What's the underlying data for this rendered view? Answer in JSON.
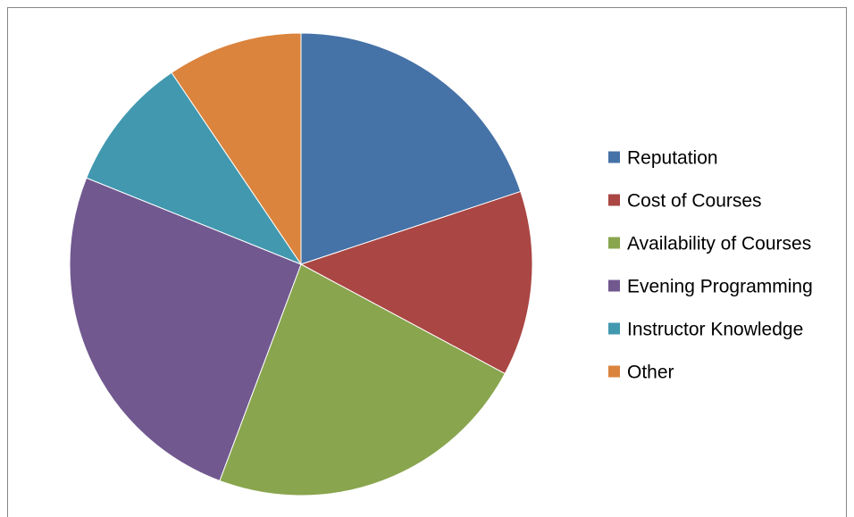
{
  "chart_data": {
    "type": "pie",
    "title": "",
    "categories": [
      "Reputation",
      "Cost of Courses",
      "Availability of Courses",
      "Evening Programming",
      "Instructor Knowledge",
      "Other"
    ],
    "values": [
      20,
      13,
      23,
      25.5,
      9.5,
      9.5
    ],
    "colors": [
      "#4572A7",
      "#AA4643",
      "#89A54E",
      "#71588F",
      "#4198AF",
      "#DB843D"
    ],
    "start_angle_deg": 0,
    "direction": "clockwise",
    "legend_position": "right"
  }
}
